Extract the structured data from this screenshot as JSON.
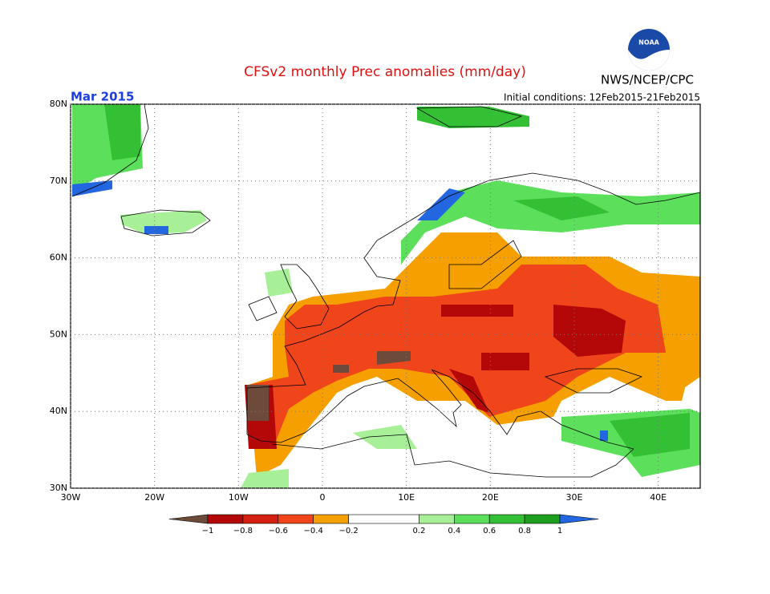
{
  "header": {
    "title": "CFSv2 monthly Prec anomalies (mm/day)",
    "agency": "NWS/NCEP/CPC",
    "logo_text": "NOAA"
  },
  "map": {
    "period": "Mar 2015",
    "initial_conditions": "Initial conditions: 12Feb2015-21Feb2015",
    "xlim": [
      -30,
      45
    ],
    "ylim": [
      30,
      80
    ],
    "xticks": [
      {
        "value": -30,
        "label": "30W"
      },
      {
        "value": -20,
        "label": "20W"
      },
      {
        "value": -10,
        "label": "10W"
      },
      0,
      {
        "value": 10,
        "label": "10E"
      },
      {
        "value": 20,
        "label": "20E"
      },
      {
        "value": 30,
        "label": "30E"
      },
      {
        "value": 40,
        "label": "40E"
      }
    ],
    "yticks": [
      {
        "value": 30,
        "label": "30N"
      },
      {
        "value": 40,
        "label": "40N"
      },
      {
        "value": 50,
        "label": "50N"
      },
      {
        "value": 60,
        "label": "60N"
      },
      {
        "value": 70,
        "label": "70N"
      },
      {
        "value": 80,
        "label": "80N"
      }
    ],
    "grid": true
  },
  "colorbar": {
    "ticks": [
      {
        "value": -1,
        "label": "−1"
      },
      {
        "value": -0.8,
        "label": "−0.8"
      },
      {
        "value": -0.6,
        "label": "−0.6"
      },
      {
        "value": -0.4,
        "label": "−0.4"
      },
      {
        "value": -0.2,
        "label": "−0.2"
      },
      0.2,
      0.4,
      0.6,
      0.8,
      1
    ],
    "colors": [
      "#6e4a3a",
      "#b40808",
      "#d42010",
      "#f0441a",
      "#f5a000",
      "#ffffff",
      "#a8f098",
      "#5ce05c",
      "#34c034",
      "#1e9e1e",
      "#2266e0"
    ]
  }
}
